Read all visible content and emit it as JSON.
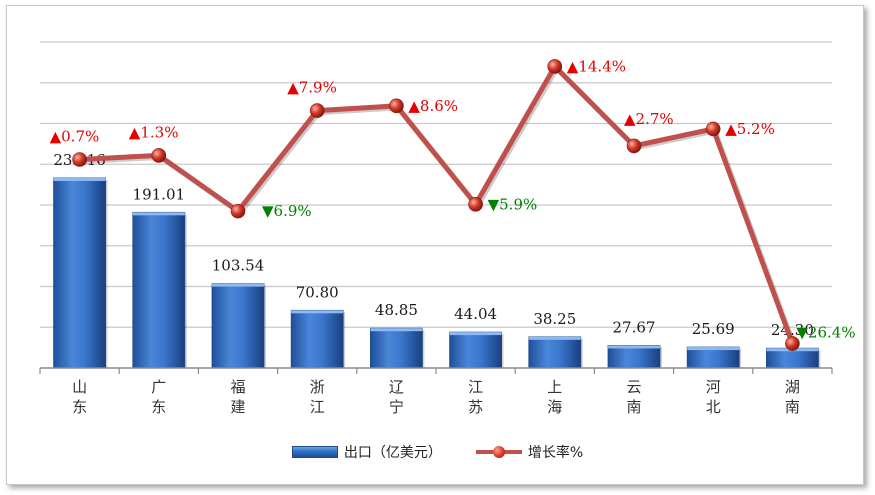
{
  "chart_data": {
    "type": "bar+line",
    "categories": [
      "山\n东",
      "广\n东",
      "福\n建",
      "浙\n江",
      "辽\n宁",
      "江\n苏",
      "上\n海",
      "云\n南",
      "河\n北",
      "湖\n南"
    ],
    "series": [
      {
        "name": "出口（亿美元）",
        "type": "bar",
        "values": [
          233.16,
          191.01,
          103.54,
          70.8,
          48.85,
          44.04,
          38.25,
          27.67,
          25.69,
          24.3
        ],
        "labels": [
          "233.16",
          "191.01",
          "103.54",
          "70.80",
          "48.85",
          "44.04",
          "38.25",
          "27.67",
          "25.69",
          "24.30"
        ]
      },
      {
        "name": "增长率%",
        "type": "line",
        "values": [
          0.7,
          1.3,
          -6.9,
          7.9,
          8.6,
          -5.9,
          14.4,
          2.7,
          5.2,
          -26.4
        ],
        "labels": [
          "▲0.7%",
          "▲1.3%",
          "▼6.9%",
          "▲7.9%",
          "▲8.6%",
          "▼5.9%",
          "▲14.4%",
          "▲2.7%",
          "▲5.2%",
          "▼26.4%"
        ]
      }
    ],
    "bar_axis": {
      "min": 0,
      "max": 400
    },
    "line_axis": {
      "min": -30,
      "max": 18
    },
    "grid": true,
    "legend_position": "bottom",
    "colors": {
      "bar": "#2f6fc6",
      "line": "#c0504d",
      "up": "#e60000",
      "down": "#008000"
    }
  },
  "legend": {
    "bar_label": "出口（亿美元）",
    "line_label": "增长率%"
  }
}
